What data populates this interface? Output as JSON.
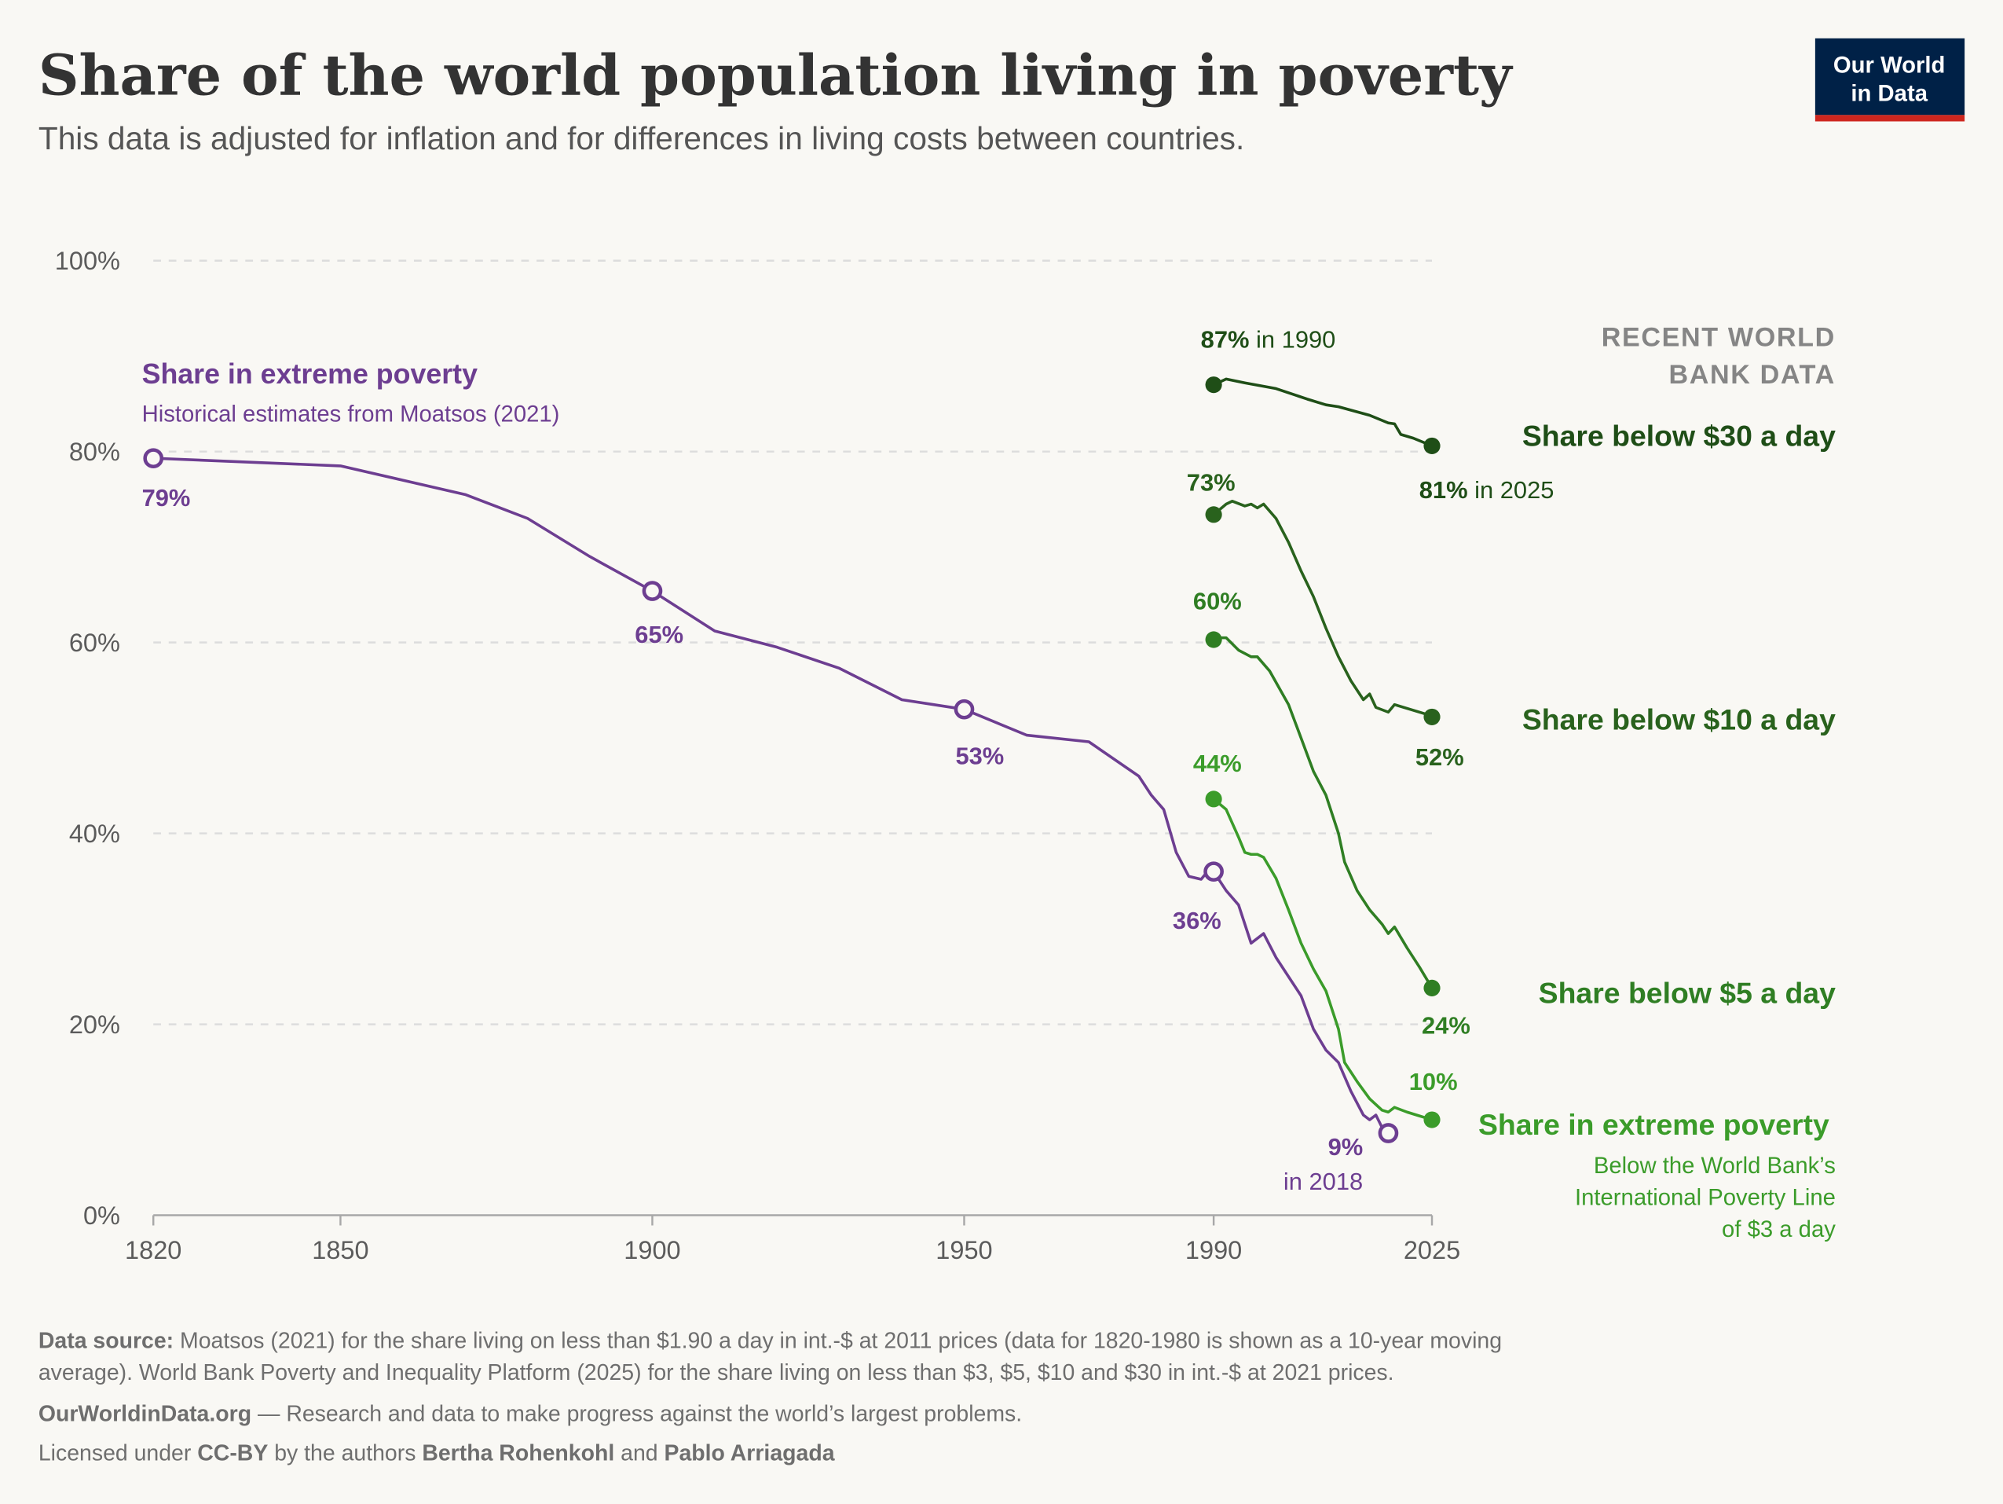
{
  "header": {
    "title": "Share of the world population living in poverty",
    "subtitle": "This data is adjusted for inflation and for differences in living costs between countries.",
    "logo_line1": "Our World",
    "logo_line2": "in Data"
  },
  "colors": {
    "background": "#f9f8f4",
    "moatsos": "#6d3e91",
    "below_30": "#1f4e17",
    "below_10": "#29621d",
    "below_5": "#2f7e23",
    "extreme_wb": "#3b9c2a",
    "logo_bg": "#002147",
    "logo_accent": "#ce261e"
  },
  "chart_data": {
    "type": "line",
    "title": "Share of the world population living in poverty",
    "xlim": [
      1820,
      2025
    ],
    "ylim": [
      0,
      100
    ],
    "x_ticks": [
      "1820",
      "1850",
      "1900",
      "1950",
      "1990",
      "2025"
    ],
    "y_ticks": [
      "0%",
      "20%",
      "40%",
      "60%",
      "80%",
      "100%"
    ],
    "grid": "horizontal dashed",
    "section_label": [
      "RECENT WORLD",
      "BANK DATA"
    ],
    "series": [
      {
        "key": "moatsos",
        "name": "Share in extreme poverty",
        "subtitle": "Historical estimates from Moatsos (2021)",
        "marker": "hollow-circle",
        "x": [
          1820,
          1850,
          1860,
          1870,
          1880,
          1890,
          1900,
          1910,
          1920,
          1930,
          1940,
          1950,
          1960,
          1970,
          1978,
          1980,
          1982,
          1984,
          1986,
          1988,
          1989,
          1990,
          1992,
          1994,
          1996,
          1998,
          2000,
          2002,
          2004,
          2006,
          2008,
          2010,
          2012,
          2014,
          2015,
          2016,
          2017,
          2018
        ],
        "y": [
          79.3,
          78.5,
          77,
          75.5,
          73,
          69,
          65.4,
          61.2,
          59.5,
          57.3,
          54,
          53,
          50.3,
          49.6,
          46,
          44,
          42.5,
          38,
          35.5,
          35.2,
          36,
          36,
          34,
          32.5,
          28.5,
          29.5,
          27,
          25,
          23,
          19.5,
          17.3,
          16,
          13,
          10.5,
          10,
          10.5,
          9.2,
          8.6
        ],
        "labels": [
          {
            "x": 1820,
            "text": "79%"
          },
          {
            "x": 1900,
            "text": "65%"
          },
          {
            "x": 1950,
            "text": "53%"
          },
          {
            "x": 1990,
            "text": "36%"
          },
          {
            "x": 2018,
            "text": "9%",
            "suffix": "in 2018"
          }
        ]
      },
      {
        "key": "below_30",
        "name": "Share below $30 a day",
        "marker": "filled-circle",
        "x": [
          1990,
          1992,
          1995,
          2000,
          2005,
          2008,
          2010,
          2015,
          2018,
          2019,
          2020,
          2022,
          2025
        ],
        "y": [
          87,
          87.6,
          87.2,
          86.6,
          85.5,
          84.9,
          84.7,
          83.8,
          83,
          82.9,
          81.8,
          81.4,
          80.6
        ],
        "start_label": {
          "value": "87%",
          "suffix": "in 1990"
        },
        "end_label": {
          "value": "81%",
          "suffix": "in 2025"
        }
      },
      {
        "key": "below_10",
        "name": "Share below $10 a day",
        "marker": "filled-circle",
        "x": [
          1990,
          1992,
          1993,
          1995,
          1996,
          1997,
          1998,
          2000,
          2002,
          2004,
          2006,
          2008,
          2010,
          2012,
          2014,
          2015,
          2016,
          2018,
          2019,
          2024,
          2025
        ],
        "y": [
          73.4,
          74.5,
          74.8,
          74.3,
          74.5,
          74.1,
          74.5,
          73,
          70.5,
          67.5,
          64.8,
          61.5,
          58.5,
          56,
          54,
          54.6,
          53.2,
          52.7,
          53.5,
          52.5,
          52.2
        ],
        "start_label": {
          "value": "73%"
        },
        "end_label": {
          "value": "52%"
        }
      },
      {
        "key": "below_5",
        "name": "Share below $5 a day",
        "marker": "filled-circle",
        "x": [
          1990,
          1991,
          1992,
          1994,
          1996,
          1997,
          1999,
          2002,
          2004,
          2006,
          2008,
          2010,
          2011,
          2013,
          2015,
          2017,
          2018,
          2019,
          2021,
          2023,
          2025
        ],
        "y": [
          60.3,
          60.5,
          60.5,
          59.2,
          58.5,
          58.5,
          57,
          53.5,
          50,
          46.5,
          44,
          40,
          37,
          34,
          32,
          30.5,
          29.5,
          30.2,
          28,
          26,
          23.8
        ],
        "start_label": {
          "value": "60%"
        },
        "end_label": {
          "value": "24%"
        }
      },
      {
        "key": "extreme_wb",
        "name": "Share in extreme poverty",
        "subtitle": [
          "Below the World Bank’s",
          "International Poverty Line",
          "of $3 a day"
        ],
        "marker": "filled-circle",
        "x": [
          1990,
          1992,
          1994,
          1995,
          1996,
          1997,
          1998,
          2000,
          2002,
          2004,
          2006,
          2008,
          2010,
          2011,
          2013,
          2015,
          2017,
          2018,
          2019,
          2021,
          2023,
          2024,
          2025
        ],
        "y": [
          43.6,
          42.5,
          39.6,
          38,
          37.8,
          37.8,
          37.5,
          35.3,
          32,
          28.5,
          25.8,
          23.5,
          19.5,
          16,
          14,
          12.2,
          11,
          10.8,
          11.3,
          10.8,
          10.4,
          10.2,
          10
        ],
        "start_label": {
          "value": "44%"
        },
        "end_label": {
          "value": "10%"
        }
      }
    ]
  },
  "footer": {
    "source_label": "Data source:",
    "source_line1": "Moatsos (2021) for the share living on less than $1.90 a day in int.-$ at 2011 prices (data for 1820-1980 is shown as a 10-year moving",
    "source_line2": "average). World Bank Poverty and Inequality Platform (2025) for the share living on less than $3, $5, $10 and $30 in int.-$ at 2021 prices.",
    "owid_link": "OurWorldinData.org",
    "owid_tagline": " — Research and data to make progress against the world’s largest problems.",
    "license_prefix": "Licensed under ",
    "license": "CC-BY",
    "license_mid": " by the authors ",
    "author1": "Bertha Rohenkohl",
    "and": " and ",
    "author2": "Pablo Arriagada"
  }
}
